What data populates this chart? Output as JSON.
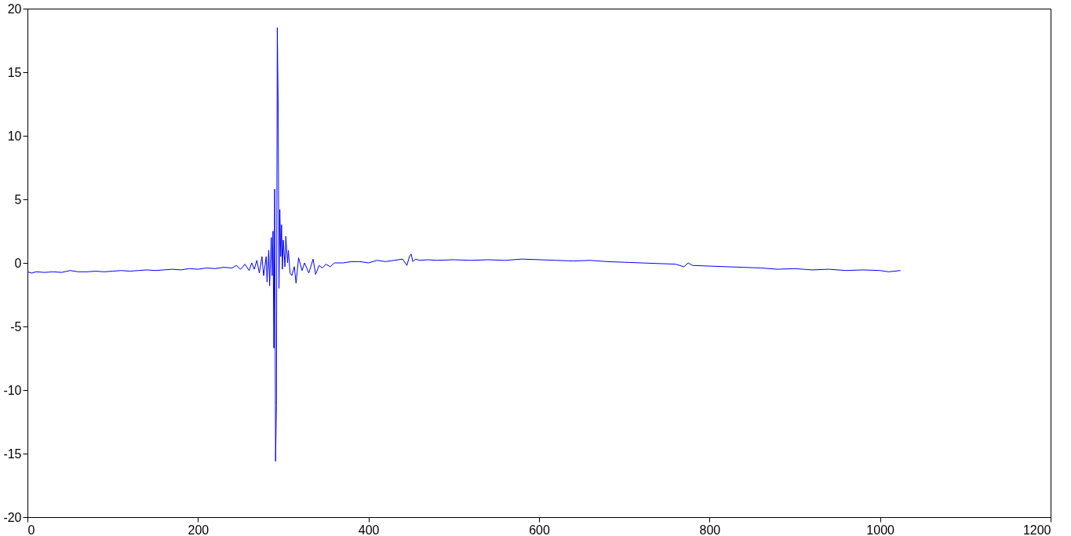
{
  "chart_data": {
    "type": "line",
    "x": [
      0,
      5,
      10,
      20,
      30,
      40,
      50,
      60,
      70,
      80,
      90,
      100,
      110,
      120,
      130,
      140,
      150,
      160,
      170,
      180,
      190,
      200,
      210,
      220,
      230,
      240,
      245,
      250,
      255,
      260,
      263,
      266,
      269,
      272,
      275,
      277,
      280,
      281,
      283,
      284,
      286,
      287,
      288,
      289,
      290,
      291,
      292,
      293,
      294,
      295,
      296,
      297,
      298,
      299,
      300,
      302,
      303,
      305,
      306,
      308,
      310,
      313,
      315,
      318,
      322,
      325,
      330,
      335,
      338,
      342,
      346,
      350,
      355,
      360,
      370,
      380,
      390,
      400,
      410,
      420,
      430,
      440,
      445,
      448,
      450,
      452,
      455,
      460,
      470,
      480,
      500,
      520,
      540,
      560,
      580,
      600,
      620,
      640,
      660,
      680,
      700,
      720,
      740,
      760,
      770,
      775,
      780,
      800,
      820,
      840,
      860,
      880,
      900,
      920,
      940,
      960,
      980,
      1000,
      1010,
      1024
    ],
    "series": [
      {
        "color": "#0000ff",
        "values": [
          -0.7,
          -0.8,
          -0.7,
          -0.75,
          -0.7,
          -0.75,
          -0.6,
          -0.7,
          -0.7,
          -0.65,
          -0.7,
          -0.65,
          -0.6,
          -0.65,
          -0.6,
          -0.55,
          -0.6,
          -0.55,
          -0.5,
          -0.55,
          -0.45,
          -0.5,
          -0.4,
          -0.45,
          -0.35,
          -0.4,
          -0.2,
          -0.5,
          -0.1,
          -0.6,
          0.0,
          -0.5,
          0.2,
          -0.8,
          0.5,
          -1.0,
          0.5,
          -1.5,
          1.0,
          -1.8,
          2.0,
          -1.0,
          2.5,
          -6.7,
          5.8,
          -15.6,
          -11.2,
          18.5,
          12.6,
          -2.0,
          4.2,
          0.5,
          3.0,
          -0.5,
          1.8,
          -0.3,
          2.1,
          0.0,
          1.0,
          -0.8,
          -1.0,
          -0.3,
          -1.6,
          0.4,
          -0.6,
          0.0,
          -0.8,
          0.3,
          -0.9,
          -0.2,
          -0.4,
          -0.1,
          -0.3,
          0.0,
          0.0,
          0.1,
          0.1,
          0.0,
          0.2,
          0.1,
          0.2,
          0.3,
          -0.2,
          0.5,
          0.7,
          0.1,
          0.3,
          0.2,
          0.25,
          0.2,
          0.25,
          0.2,
          0.25,
          0.2,
          0.3,
          0.25,
          0.2,
          0.15,
          0.2,
          0.1,
          0.05,
          0.0,
          -0.05,
          -0.1,
          -0.3,
          0.0,
          -0.2,
          -0.25,
          -0.3,
          -0.35,
          -0.4,
          -0.5,
          -0.45,
          -0.55,
          -0.5,
          -0.6,
          -0.55,
          -0.6,
          -0.7,
          -0.6
        ]
      }
    ],
    "xlim": [
      0,
      1200
    ],
    "xticks": [
      0,
      200,
      400,
      600,
      800,
      1000,
      1200
    ],
    "ylim": [
      -20,
      20
    ],
    "yticks": [
      -20,
      -15,
      -10,
      -5,
      0,
      5,
      10,
      15,
      20
    ],
    "grid": false,
    "marker": "none",
    "line_style": "solid"
  }
}
